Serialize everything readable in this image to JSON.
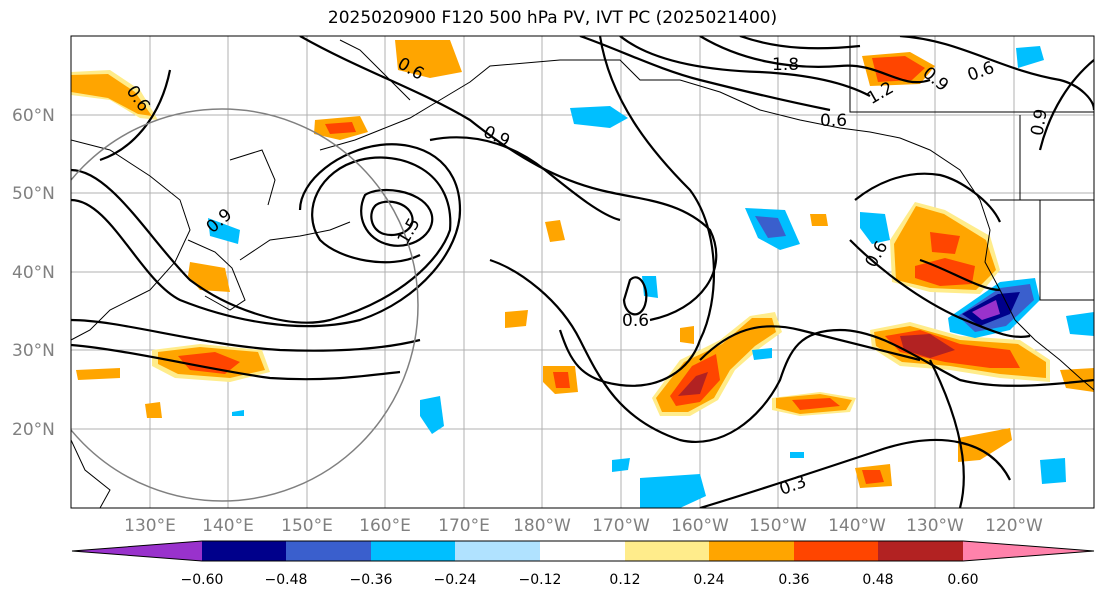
{
  "title": "2025020900 F120 500 hPa PV, IVT PC (2025021400)",
  "lat_labels": [
    "60°N",
    "50°N",
    "40°N",
    "30°N",
    "20°N"
  ],
  "lon_labels": [
    "130°E",
    "140°E",
    "150°E",
    "160°E",
    "170°E",
    "180°W",
    "170°W",
    "160°W",
    "150°W",
    "140°W",
    "130°W",
    "120°W"
  ],
  "contour_labels": [
    "0.6",
    "0.6",
    "0.9",
    "0.9",
    "1.5",
    "1.8",
    "1.2",
    "0.9",
    "0.6",
    "0.6",
    "0.6",
    "0.6",
    "0.3",
    "0.9"
  ],
  "colorbar": {
    "ticks": [
      "−0.60",
      "−0.48",
      "−0.36",
      "−0.24",
      "−0.12",
      "0.12",
      "0.24",
      "0.36",
      "0.48",
      "0.60"
    ],
    "colors": [
      "#9932cc",
      "#00008b",
      "#3a5fcd",
      "#00bfff",
      "#b0e2ff",
      "#ffffff",
      "#ffec8b",
      "#ffa500",
      "#ff4500",
      "#b22222",
      "#ff82ab"
    ]
  }
}
